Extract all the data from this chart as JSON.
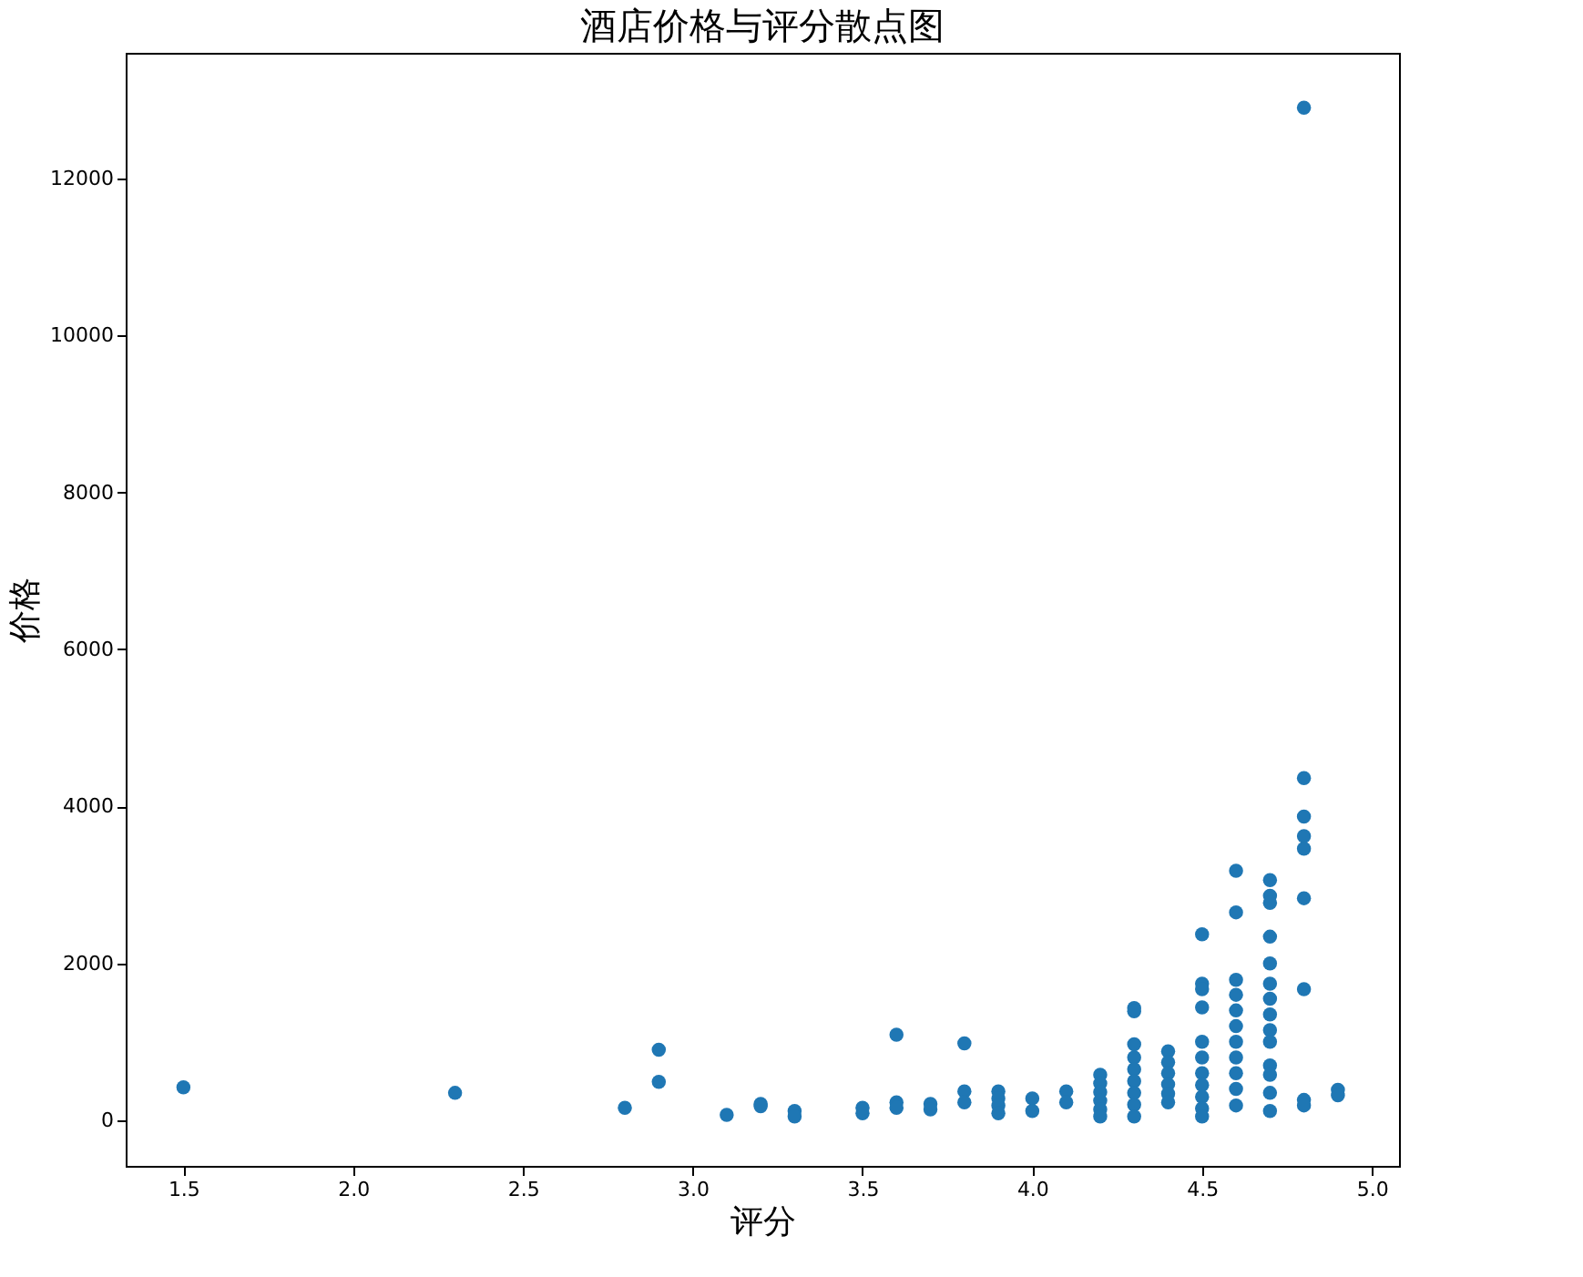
{
  "chart_data": {
    "type": "scatter",
    "title": "酒店价格与评分散点图",
    "xlabel": "评分",
    "ylabel": "价格",
    "xlim": [
      1.33,
      5.08
    ],
    "xticks": [
      {
        "value": 1.5,
        "label": "1.5"
      },
      {
        "value": 2.0,
        "label": "2.0"
      },
      {
        "value": 2.5,
        "label": "2.5"
      },
      {
        "value": 3.0,
        "label": "3.0"
      },
      {
        "value": 3.5,
        "label": "3.5"
      },
      {
        "value": 4.0,
        "label": "4.0"
      },
      {
        "value": 4.5,
        "label": "4.5"
      },
      {
        "value": 5.0,
        "label": "5.0"
      }
    ],
    "ylim": [
      -580,
      13600
    ],
    "yticks": [
      0,
      2000,
      4000,
      6000,
      8000,
      10000,
      12000
    ],
    "grid": false,
    "legend": false,
    "marker": "circle",
    "series": [
      {
        "color": "#1f77b4",
        "x": [
          1.5,
          2.3,
          2.8,
          2.9,
          2.9,
          3.1,
          3.2,
          3.2,
          3.3,
          3.3,
          3.5,
          3.5,
          3.6,
          3.6,
          3.6,
          3.7,
          3.7,
          3.8,
          3.8,
          3.8,
          3.9,
          3.9,
          3.9,
          3.9,
          4.0,
          4.0,
          4.1,
          4.1,
          4.2,
          4.2,
          4.2,
          4.2,
          4.2,
          4.2,
          4.3,
          4.3,
          4.3,
          4.3,
          4.3,
          4.3,
          4.3,
          4.3,
          4.3,
          4.4,
          4.4,
          4.4,
          4.4,
          4.4,
          4.4,
          4.5,
          4.5,
          4.5,
          4.5,
          4.5,
          4.5,
          4.5,
          4.5,
          4.5,
          4.5,
          4.5,
          4.6,
          4.6,
          4.6,
          4.6,
          4.6,
          4.6,
          4.6,
          4.6,
          4.6,
          4.6,
          4.6,
          4.7,
          4.7,
          4.7,
          4.7,
          4.7,
          4.7,
          4.7,
          4.7,
          4.7,
          4.7,
          4.7,
          4.7,
          4.7,
          4.7,
          4.8,
          4.8,
          4.8,
          4.8,
          4.8,
          4.8,
          4.8,
          4.8,
          4.8,
          4.9,
          4.9
        ],
        "values": [
          420,
          350,
          160,
          900,
          490,
          70,
          210,
          180,
          120,
          50,
          90,
          160,
          1090,
          230,
          160,
          210,
          140,
          980,
          370,
          230,
          370,
          280,
          190,
          90,
          280,
          120,
          370,
          230,
          580,
          470,
          360,
          250,
          140,
          50,
          1430,
          1390,
          970,
          800,
          650,
          500,
          350,
          200,
          50,
          880,
          740,
          600,
          460,
          340,
          230,
          1000,
          2370,
          1740,
          1670,
          1440,
          800,
          600,
          450,
          300,
          150,
          50,
          3180,
          2650,
          1790,
          1600,
          1400,
          1200,
          1000,
          800,
          600,
          400,
          190,
          3060,
          2860,
          2770,
          2340,
          2000,
          1740,
          1550,
          1350,
          1150,
          1000,
          700,
          580,
          350,
          120,
          12900,
          4360,
          3870,
          3620,
          3460,
          2830,
          1670,
          260,
          190,
          390,
          320
        ]
      }
    ]
  }
}
